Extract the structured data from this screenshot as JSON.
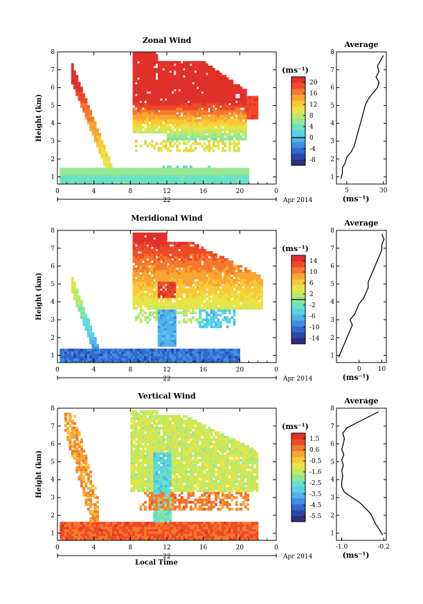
{
  "xlabel": "Local Time",
  "date_label": "Apr 2014",
  "day_label": "22",
  "x_ticks": [
    "0",
    "4",
    "8",
    "12",
    "16",
    "20",
    "0"
  ],
  "y_ticks": [
    "1",
    "2",
    "3",
    "4",
    "5",
    "6",
    "7",
    "8"
  ],
  "ylabel": "Height (km)",
  "avg_title": "Average",
  "unit_label": "(ms⁻¹)",
  "colormap": [
    "#312e82",
    "#2c47a8",
    "#3268cf",
    "#3f8ee3",
    "#52b3ea",
    "#57d2e6",
    "#69e1c4",
    "#97e791",
    "#c4e862",
    "#e8e346",
    "#f8c937",
    "#f9a533",
    "#f4792c",
    "#ef4a28",
    "#e1312b"
  ],
  "chart_data": [
    {
      "type": "heatmap",
      "title": "Zonal Wind",
      "xlabel": "Local Time",
      "ylabel": "Height (km)",
      "xlim": [
        0,
        24
      ],
      "ylim": [
        0.6,
        8
      ],
      "colorbar_ticks": [
        "20",
        "16",
        "12",
        "8",
        "4",
        "0",
        "-4",
        "-8"
      ],
      "colorbar_range": [
        -10,
        22
      ],
      "zero_contour": true,
      "description_values": {
        "peak_core": "~20 ms-1 between 5 and 7.8 km, 8-21 LT",
        "low_level": "~4 ms-1 near 1 km"
      },
      "profile": {
        "xlim": [
          -2,
          32
        ],
        "xticks": [
          "5",
          "30"
        ],
        "height_km": [
          0.9,
          1.2,
          1.5,
          1.8,
          2.1,
          2.4,
          2.7,
          3.0,
          3.3,
          3.6,
          3.9,
          4.2,
          4.5,
          4.8,
          5.1,
          5.4,
          5.7,
          6.0,
          6.3,
          6.6,
          6.9,
          7.2,
          7.5,
          7.8
        ],
        "speed": [
          1,
          2,
          2,
          4,
          5,
          8,
          10,
          11,
          12,
          13,
          14,
          15,
          16,
          17,
          18,
          20,
          23,
          26,
          27,
          25,
          27,
          26,
          28,
          30
        ]
      }
    },
    {
      "type": "heatmap",
      "title": "Meridional Wind",
      "xlabel": "Local Time",
      "ylabel": "Height (km)",
      "xlim": [
        0,
        24
      ],
      "ylim": [
        0.6,
        8
      ],
      "colorbar_ticks": [
        "14",
        "10",
        "6",
        "2",
        "-2",
        "-6",
        "-10",
        "-14"
      ],
      "colorbar_range": [
        -16,
        16
      ],
      "zero_contour": true,
      "profile": {
        "xlim": [
          -10,
          12
        ],
        "xticks": [
          "0",
          "10"
        ],
        "height_km": [
          0.9,
          1.2,
          1.5,
          1.8,
          2.1,
          2.4,
          2.7,
          3.0,
          3.3,
          3.6,
          3.9,
          4.2,
          4.5,
          4.8,
          5.1,
          5.4,
          5.7,
          6.0,
          6.3,
          6.6,
          6.9,
          7.2,
          7.5,
          7.8
        ],
        "speed": [
          -9,
          -8,
          -7,
          -6,
          -5,
          -4,
          -3,
          -4,
          -2,
          -1,
          0,
          2,
          3,
          4,
          4,
          5,
          6,
          7,
          8,
          9,
          10,
          10,
          11,
          10
        ]
      }
    },
    {
      "type": "heatmap",
      "title": "Vertical Wind",
      "xlabel": "Local Time",
      "ylabel": "Height (km)",
      "xlim": [
        0,
        24
      ],
      "ylim": [
        0.6,
        8
      ],
      "colorbar_ticks": [
        "1.5",
        "0.6",
        "-0.5",
        "-1.6",
        "-2.5",
        "-3.5",
        "-4.5",
        "-5.5"
      ],
      "colorbar_range": [
        -6,
        2
      ],
      "zero_contour": false,
      "profile": {
        "xlim": [
          -1.1,
          -0.15
        ],
        "xticks": [
          "-1.0",
          "-0.2"
        ],
        "height_km": [
          0.9,
          1.2,
          1.5,
          1.8,
          2.1,
          2.4,
          2.7,
          3.0,
          3.3,
          3.6,
          3.9,
          4.2,
          4.5,
          4.8,
          5.1,
          5.4,
          5.7,
          6.0,
          6.3,
          6.6,
          6.9,
          7.2,
          7.5,
          7.8
        ],
        "speed": [
          -0.22,
          -0.28,
          -0.35,
          -0.4,
          -0.45,
          -0.55,
          -0.65,
          -0.8,
          -0.95,
          -1.0,
          -1.0,
          -0.98,
          -1.0,
          -0.97,
          -1.0,
          -0.96,
          -1.0,
          -0.97,
          -0.95,
          -0.98,
          -0.9,
          -0.7,
          -0.5,
          -0.3
        ]
      }
    }
  ]
}
